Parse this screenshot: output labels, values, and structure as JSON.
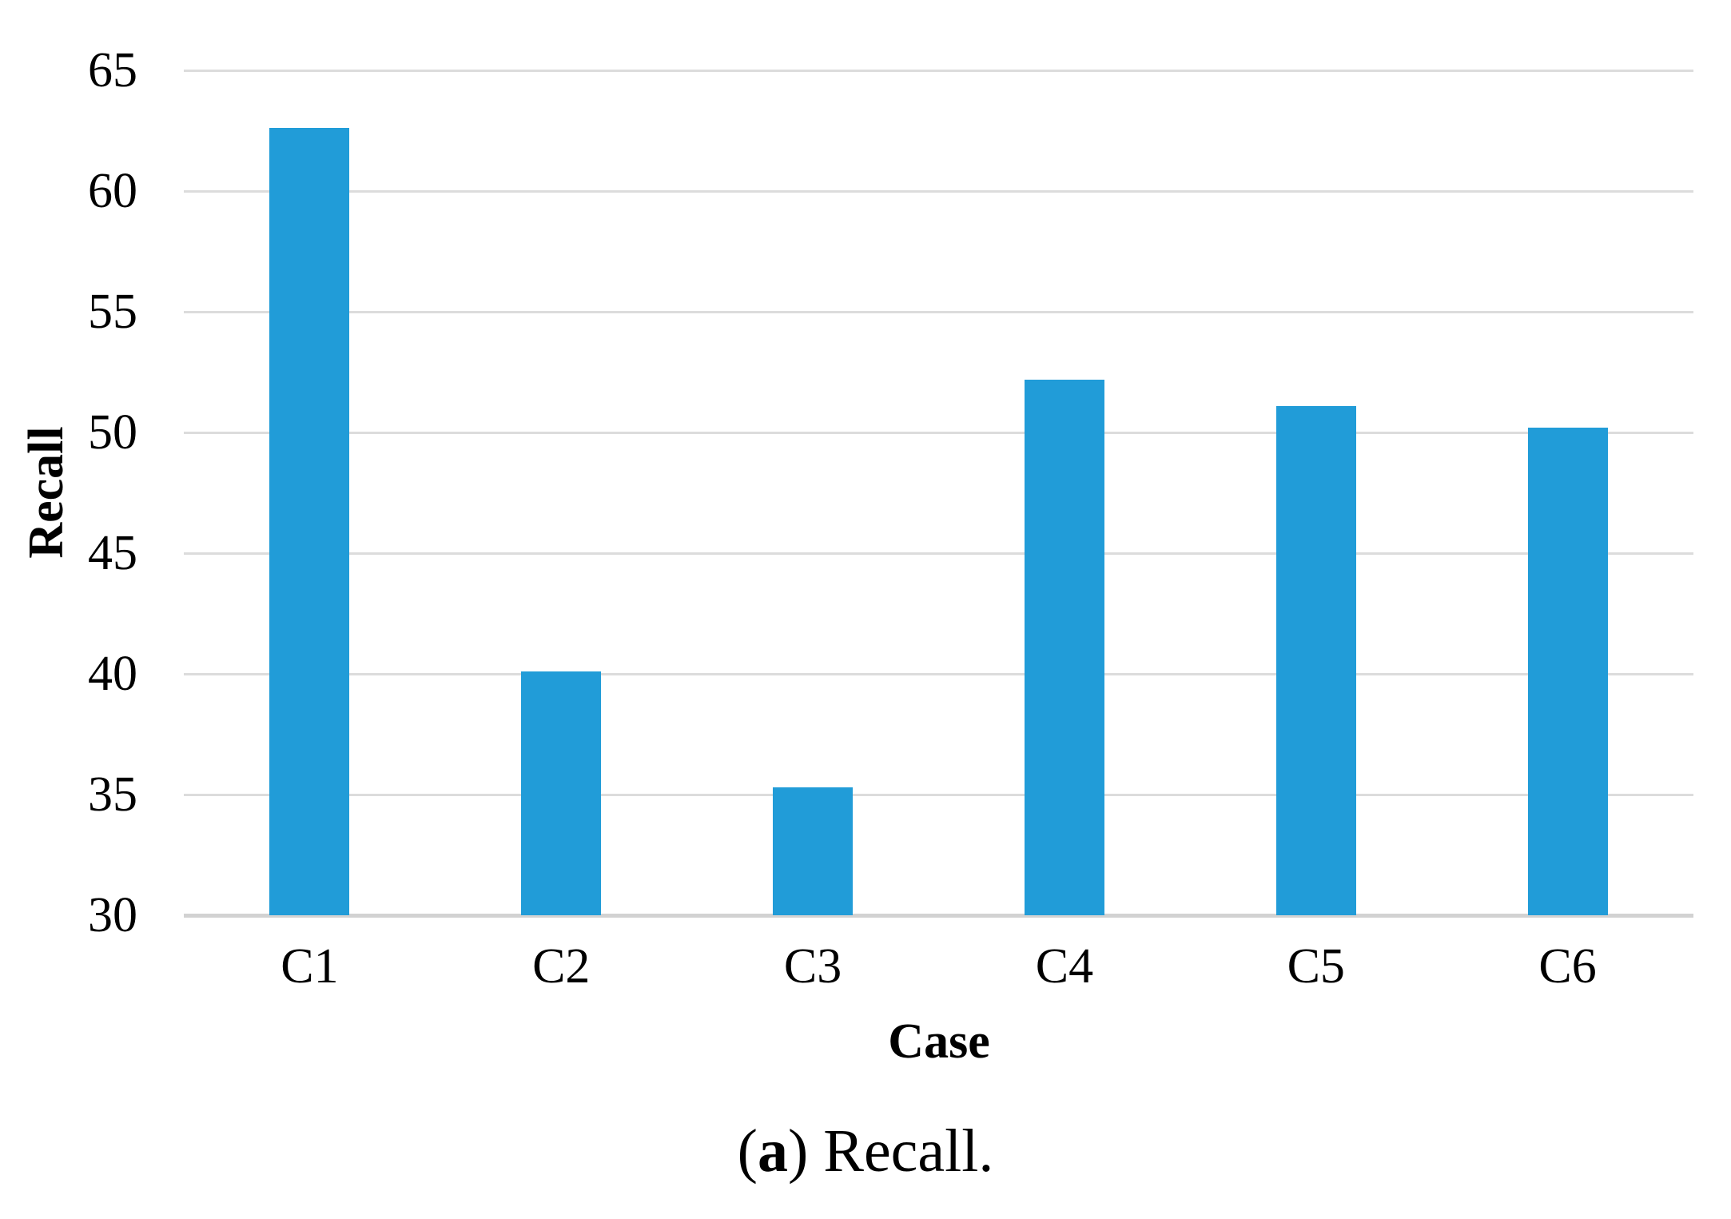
{
  "figure": {
    "caption_prefix": "(",
    "caption_bold": "a",
    "caption_suffix": ") Recall."
  },
  "chart_data": {
    "type": "bar",
    "title": "",
    "categories": [
      "C1",
      "C2",
      "C3",
      "C4",
      "C5",
      "C6"
    ],
    "values": [
      62.6,
      40.1,
      35.3,
      52.2,
      51.1,
      50.2
    ],
    "series_name": "Recall",
    "xlabel": "Case",
    "ylabel": "Recall",
    "ylim": [
      30,
      65
    ],
    "yticks": [
      30,
      35,
      40,
      45,
      50,
      55,
      60,
      65
    ],
    "grid": true,
    "legend": false,
    "colors": {
      "bar": "#219CD8",
      "gridline": "#DCDCDC",
      "axisline": "#D2D2D2",
      "text": "#000000"
    }
  }
}
